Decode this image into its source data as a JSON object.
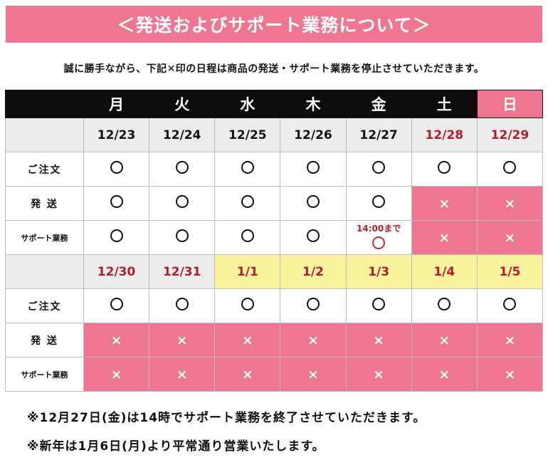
{
  "title": "＜発送およびサポート業務について＞",
  "notice": "誠に勝手ながら、下記✕印の日程は商品の発送・サポート業務を停止させていただきます。",
  "days": [
    "月",
    "火",
    "水",
    "木",
    "金",
    "土",
    "日"
  ],
  "labels": {
    "order": "ご注文",
    "shipping": "発 送",
    "support": "サポート業務"
  },
  "week1": {
    "dates": [
      "12/23",
      "12/24",
      "12/25",
      "12/26",
      "12/27",
      "12/28",
      "12/29"
    ],
    "order": [
      "○",
      "○",
      "○",
      "○",
      "○",
      "○",
      "○"
    ],
    "shipping": [
      "○",
      "○",
      "○",
      "○",
      "○",
      "×",
      "×"
    ],
    "support": [
      "○",
      "○",
      "○",
      "○",
      "○",
      "×",
      "×"
    ],
    "support_note": "14:00まで"
  },
  "week2": {
    "dates": [
      "12/30",
      "12/31",
      "1/1",
      "1/2",
      "1/3",
      "1/4",
      "1/5"
    ],
    "order": [
      "○",
      "○",
      "○",
      "○",
      "○",
      "○",
      "○"
    ],
    "shipping": [
      "×",
      "×",
      "×",
      "×",
      "×",
      "×",
      "×"
    ],
    "support": [
      "×",
      "×",
      "×",
      "×",
      "×",
      "×",
      "×"
    ]
  },
  "footnotes": [
    "※12月27日(金)は14時でサポート業務を終了させていただきます。",
    "※新年は1月6日(月)より平常通り営業いたします。"
  ],
  "colors": {
    "pink": "#ee7690",
    "black": "#0d0d0d",
    "yellow": "#f8f39c",
    "red_text": "#b01e2e",
    "gray": "#ececec"
  }
}
